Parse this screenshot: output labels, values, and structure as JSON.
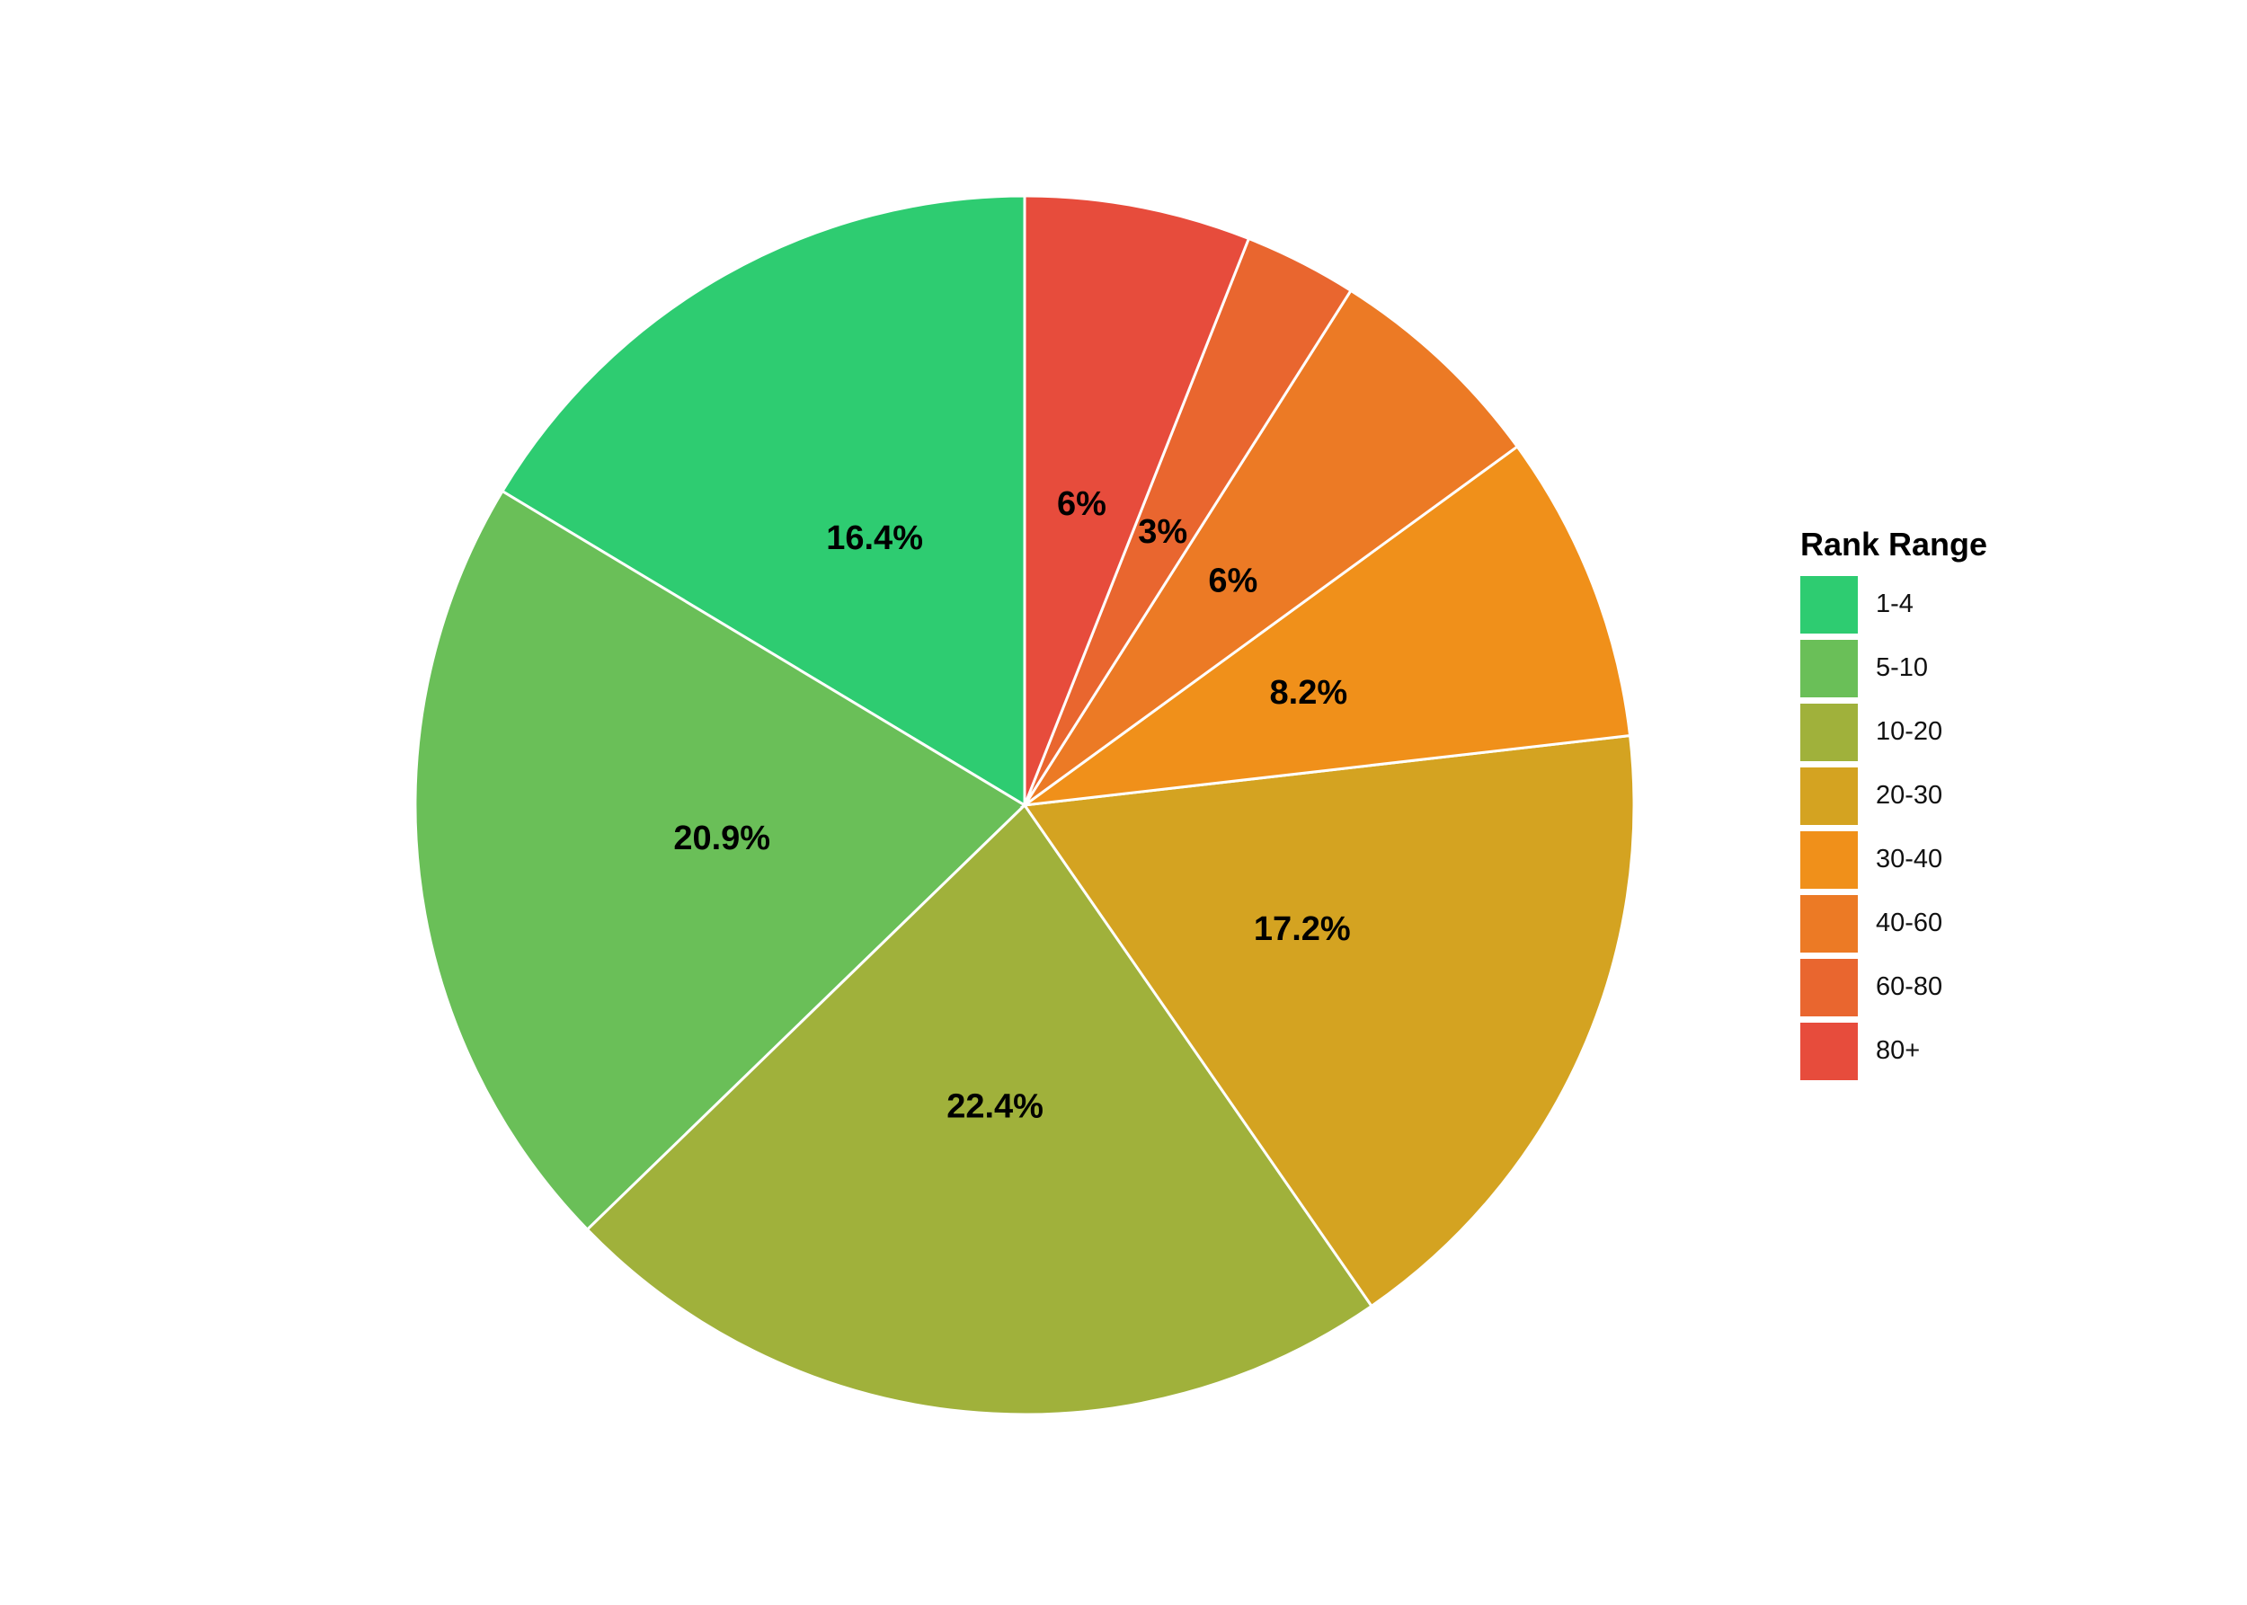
{
  "chart_data": {
    "type": "pie",
    "legend_title": "Rank Range",
    "legend_position": "right",
    "categories": [
      "1-4",
      "5-10",
      "10-20",
      "20-30",
      "30-40",
      "40-60",
      "60-80",
      "80+"
    ],
    "values": [
      16.4,
      20.9,
      22.4,
      17.2,
      8.2,
      6,
      3,
      6
    ],
    "labels": [
      "16.4%",
      "20.9%",
      "22.4%",
      "17.2%",
      "8.2%",
      "6%",
      "3%",
      "6%"
    ],
    "colors": [
      "#2ecc71",
      "#6abf58",
      "#a0b13b",
      "#d4a321",
      "#f0901a",
      "#ec7a25",
      "#e9662f",
      "#e74c3c"
    ]
  }
}
